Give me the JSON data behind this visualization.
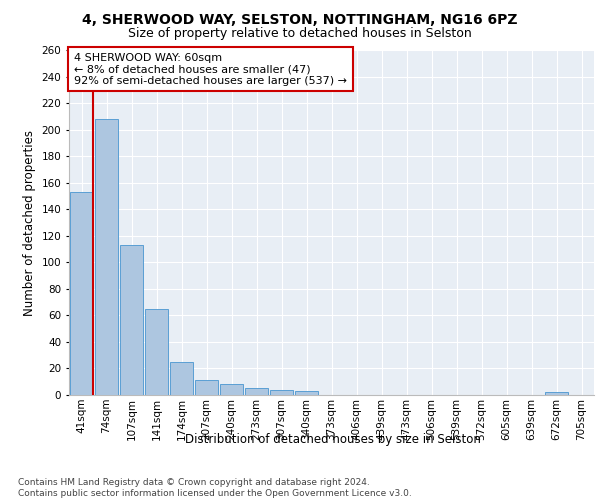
{
  "title_line1": "4, SHERWOOD WAY, SELSTON, NOTTINGHAM, NG16 6PZ",
  "title_line2": "Size of property relative to detached houses in Selston",
  "xlabel": "Distribution of detached houses by size in Selston",
  "ylabel": "Number of detached properties",
  "bin_labels": [
    "41sqm",
    "74sqm",
    "107sqm",
    "141sqm",
    "174sqm",
    "207sqm",
    "240sqm",
    "273sqm",
    "307sqm",
    "340sqm",
    "373sqm",
    "406sqm",
    "439sqm",
    "473sqm",
    "506sqm",
    "539sqm",
    "572sqm",
    "605sqm",
    "639sqm",
    "672sqm",
    "705sqm"
  ],
  "bar_values": [
    153,
    208,
    113,
    65,
    25,
    11,
    8,
    5,
    4,
    3,
    0,
    0,
    0,
    0,
    0,
    0,
    0,
    0,
    0,
    2,
    0
  ],
  "bar_color": "#adc6e0",
  "bar_edge_color": "#5a9fd4",
  "vline_color": "#cc0000",
  "annotation_text": "4 SHERWOOD WAY: 60sqm\n← 8% of detached houses are smaller (47)\n92% of semi-detached houses are larger (537) →",
  "annotation_box_color": "#ffffff",
  "annotation_box_edge": "#cc0000",
  "ylim": [
    0,
    260
  ],
  "yticks": [
    0,
    20,
    40,
    60,
    80,
    100,
    120,
    140,
    160,
    180,
    200,
    220,
    240,
    260
  ],
  "background_color": "#e8eef5",
  "grid_color": "#ffffff",
  "footer_text": "Contains HM Land Registry data © Crown copyright and database right 2024.\nContains public sector information licensed under the Open Government Licence v3.0.",
  "title_fontsize": 10,
  "subtitle_fontsize": 9,
  "axis_label_fontsize": 8.5,
  "tick_fontsize": 7.5,
  "annotation_fontsize": 8,
  "footer_fontsize": 6.5
}
